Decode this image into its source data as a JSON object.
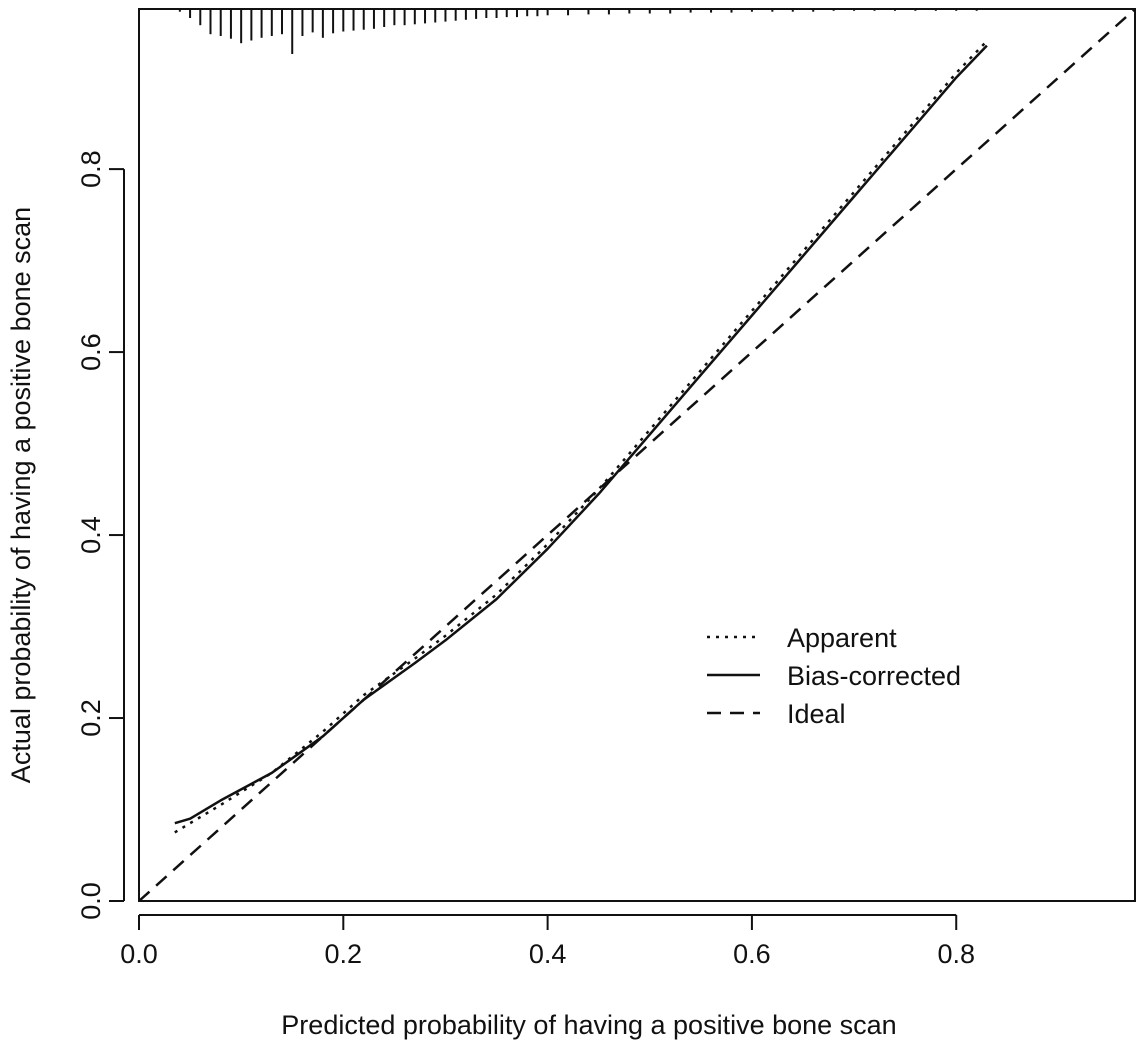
{
  "chart_data": {
    "type": "line",
    "title": "",
    "xlabel": "Predicted probability of having a positive bone scan",
    "ylabel": "Actual probability of having a positive bone scan",
    "xlim": [
      0,
      0.975
    ],
    "ylim": [
      0,
      0.975
    ],
    "x_ticks": [
      "0.0",
      "0.2",
      "0.4",
      "0.6",
      "0.8"
    ],
    "y_ticks": [
      "0.0",
      "0.2",
      "0.4",
      "0.6",
      "0.8"
    ],
    "grid": false,
    "legend_position": "center-right",
    "series": [
      {
        "name": "Apparent",
        "line_style": "dotted",
        "x": [
          0.035,
          0.05,
          0.08,
          0.13,
          0.18,
          0.22,
          0.27,
          0.3,
          0.35,
          0.4,
          0.45,
          0.5,
          0.55,
          0.6,
          0.65,
          0.7,
          0.75,
          0.8,
          0.83
        ],
        "y": [
          0.075,
          0.085,
          0.105,
          0.14,
          0.185,
          0.225,
          0.265,
          0.29,
          0.335,
          0.39,
          0.45,
          0.515,
          0.58,
          0.645,
          0.71,
          0.775,
          0.84,
          0.905,
          0.94
        ]
      },
      {
        "name": "Bias-corrected",
        "line_style": "solid",
        "x": [
          0.035,
          0.05,
          0.08,
          0.13,
          0.18,
          0.22,
          0.27,
          0.3,
          0.35,
          0.4,
          0.45,
          0.5,
          0.55,
          0.6,
          0.65,
          0.7,
          0.75,
          0.8,
          0.83
        ],
        "y": [
          0.085,
          0.09,
          0.11,
          0.14,
          0.18,
          0.22,
          0.26,
          0.285,
          0.33,
          0.385,
          0.445,
          0.51,
          0.575,
          0.64,
          0.705,
          0.77,
          0.835,
          0.9,
          0.935
        ]
      },
      {
        "name": "Ideal",
        "line_style": "dashed",
        "x": [
          0,
          0.975
        ],
        "y": [
          0,
          0.975
        ]
      }
    ],
    "rug": {
      "position": "top",
      "x": [
        0.04,
        0.05,
        0.06,
        0.07,
        0.08,
        0.09,
        0.1,
        0.11,
        0.12,
        0.13,
        0.14,
        0.15,
        0.16,
        0.17,
        0.18,
        0.19,
        0.2,
        0.21,
        0.22,
        0.23,
        0.24,
        0.25,
        0.26,
        0.27,
        0.28,
        0.29,
        0.3,
        0.31,
        0.32,
        0.33,
        0.34,
        0.35,
        0.36,
        0.37,
        0.38,
        0.39,
        0.4,
        0.42,
        0.44,
        0.46,
        0.48,
        0.5,
        0.52,
        0.54,
        0.56,
        0.58,
        0.6,
        0.62,
        0.64,
        0.66,
        0.68,
        0.7,
        0.72,
        0.74,
        0.76,
        0.78,
        0.8,
        0.82,
        0.84,
        0.86,
        0.88
      ],
      "counts": [
        3,
        10,
        18,
        28,
        30,
        33,
        38,
        35,
        32,
        30,
        28,
        50,
        30,
        26,
        32,
        27,
        25,
        24,
        23,
        22,
        20,
        18,
        18,
        17,
        16,
        15,
        14,
        13,
        12,
        11,
        10,
        10,
        9,
        9,
        8,
        8,
        7,
        7,
        6,
        6,
        5,
        5,
        5,
        4,
        4,
        4,
        3,
        3,
        3,
        3,
        2,
        2,
        2,
        2,
        2,
        2,
        2,
        2,
        1,
        1,
        1
      ]
    }
  }
}
